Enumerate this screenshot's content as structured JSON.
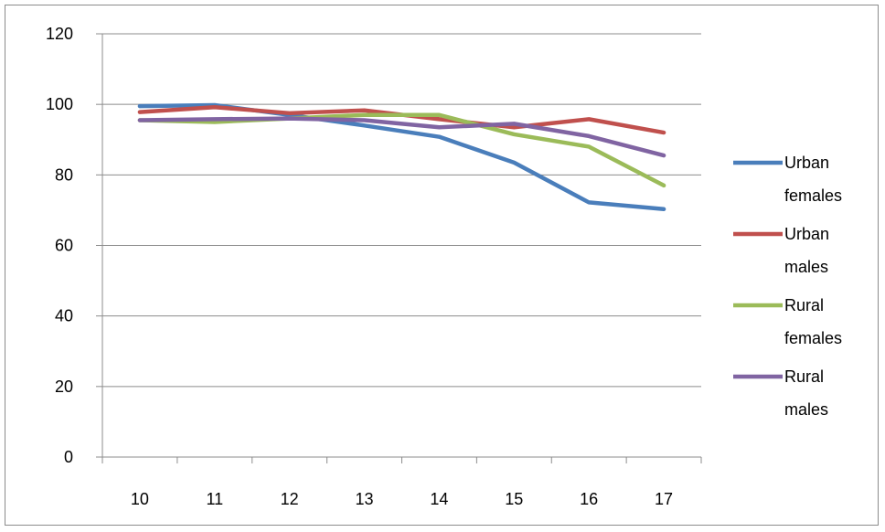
{
  "chart_data": {
    "type": "line",
    "title": "",
    "xlabel": "",
    "ylabel": "",
    "x": [
      10,
      11,
      12,
      13,
      14,
      15,
      16,
      17
    ],
    "ylim": [
      0,
      120
    ],
    "y_ticks": [
      0,
      20,
      40,
      60,
      80,
      100,
      120
    ],
    "grid": "horizontal",
    "legend_position": "right",
    "series": [
      {
        "name": "Urban females",
        "legend_lines": [
          "Urban",
          "females"
        ],
        "color": "#4a7ebb",
        "values": [
          99.5,
          99.8,
          97.0,
          94.0,
          90.8,
          83.5,
          72.2,
          70.3
        ]
      },
      {
        "name": "Urban males",
        "legend_lines": [
          "Urban",
          "males"
        ],
        "color": "#c0504d",
        "values": [
          97.8,
          99.2,
          97.5,
          98.3,
          95.8,
          93.5,
          95.8,
          92.0
        ]
      },
      {
        "name": "Rural females",
        "legend_lines": [
          "Rural",
          "females"
        ],
        "color": "#9bbb59",
        "values": [
          95.5,
          95.0,
          96.0,
          97.0,
          97.0,
          91.5,
          88.0,
          77.0
        ]
      },
      {
        "name": "Rural males",
        "legend_lines": [
          "Rural",
          "males"
        ],
        "color": "#8064a2",
        "values": [
          95.5,
          95.8,
          96.0,
          95.5,
          93.5,
          94.5,
          91.0,
          85.5
        ]
      }
    ]
  }
}
